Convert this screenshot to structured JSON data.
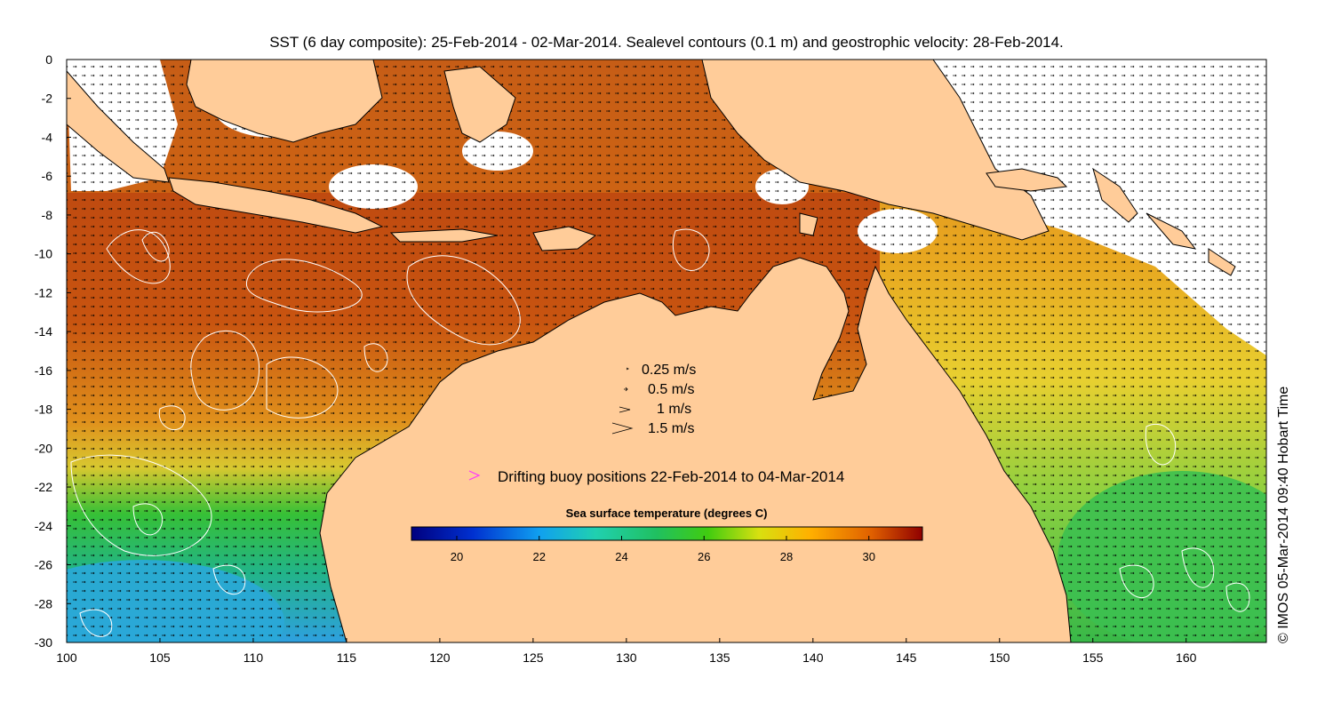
{
  "title": "SST (6 day composite): 25-Feb-2014 - 02-Mar-2014. Sealevel contours (0.1 m) and geostrophic velocity: 28-Feb-2014.",
  "credit": "© IMOS 05-Mar-2014 09:40 Hobart Time",
  "x_axis": {
    "ticks": [
      "100",
      "105",
      "110",
      "115",
      "120",
      "125",
      "130",
      "135",
      "140",
      "145",
      "150",
      "155",
      "160"
    ]
  },
  "y_axis": {
    "ticks": [
      "0",
      "-2",
      "-4",
      "-6",
      "-8",
      "-10",
      "-12",
      "-14",
      "-16",
      "-18",
      "-20",
      "-22",
      "-24",
      "-26",
      "-28",
      "-30"
    ]
  },
  "velocity_legend": [
    {
      "label": "0.25 m/s",
      "speed": 0.25
    },
    {
      "label": "0.5 m/s",
      "speed": 0.5
    },
    {
      "label": "1 m/s",
      "speed": 1
    },
    {
      "label": "1.5 m/s",
      "speed": 1.5
    }
  ],
  "buoy_legend": {
    "label": "Drifting buoy positions 22-Feb-2014 to 04-Mar-2014",
    "color": "#ff33ff"
  },
  "colorbar": {
    "title": "Sea surface temperature (degrees C)",
    "ticks": [
      "20",
      "22",
      "24",
      "26",
      "28",
      "30"
    ],
    "min": 18.9,
    "max": 31.3
  },
  "colors": {
    "land": "#ffcc99",
    "cloud": "#ffffff",
    "contour": "#ffffff",
    "coast": "#000000",
    "arrow": "#000000"
  }
}
